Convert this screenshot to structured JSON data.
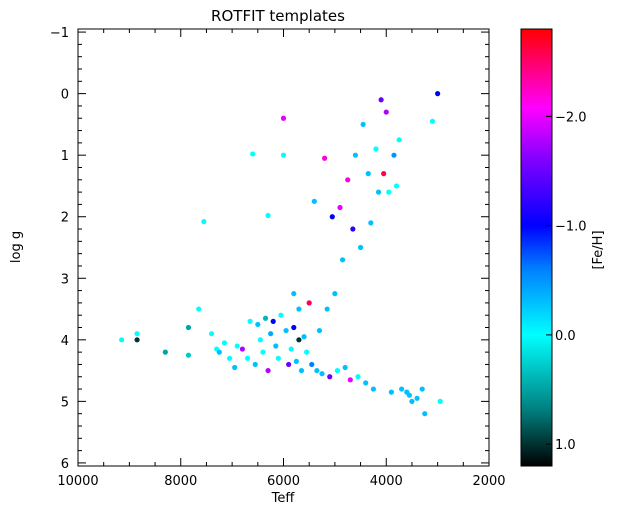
{
  "chart_data": {
    "type": "scatter",
    "title": "ROTFIT templates",
    "xlabel": "Teff",
    "ylabel": "log g",
    "xlim": [
      10000,
      2000
    ],
    "ylim": [
      6.05,
      -1.05
    ],
    "x_ticks": [
      10000,
      8000,
      6000,
      4000,
      2000
    ],
    "x_tick_labels": [
      "10000",
      "8000",
      "6000",
      "4000",
      "2000"
    ],
    "y_ticks": [
      -1,
      0,
      1,
      2,
      3,
      4,
      5,
      6
    ],
    "y_tick_labels": [
      "−1",
      "0",
      "1",
      "2",
      "3",
      "4",
      "5",
      "6"
    ],
    "grid": false,
    "colorbar": {
      "label": "[Fe/H]",
      "range": [
        1.2,
        -2.8
      ],
      "ticks": [
        1.0,
        0.0,
        -1.0,
        -2.0
      ],
      "tick_labels": [
        "1.0",
        "0.0",
        "−1.0",
        "−2.0"
      ],
      "colormap": "black-teal-cyan-blue-purple-magenta-red"
    },
    "points": [
      {
        "teff": 9150,
        "logg": 4.0,
        "feh": 0.0
      },
      {
        "teff": 8850,
        "logg": 3.9,
        "feh": 0.0
      },
      {
        "teff": 8850,
        "logg": 4.0,
        "feh": 1.0
      },
      {
        "teff": 8300,
        "logg": 4.2,
        "feh": 0.5
      },
      {
        "teff": 7850,
        "logg": 3.8,
        "feh": 0.5
      },
      {
        "teff": 7850,
        "logg": 4.25,
        "feh": 0.3
      },
      {
        "teff": 7650,
        "logg": 3.5,
        "feh": 0.0
      },
      {
        "teff": 7550,
        "logg": 2.08,
        "feh": 0.0
      },
      {
        "teff": 7400,
        "logg": 3.9,
        "feh": 0.0
      },
      {
        "teff": 7300,
        "logg": 4.15,
        "feh": 0.0
      },
      {
        "teff": 7250,
        "logg": 4.2,
        "feh": -0.3
      },
      {
        "teff": 7150,
        "logg": 4.05,
        "feh": 0.0
      },
      {
        "teff": 7050,
        "logg": 4.3,
        "feh": 0.0
      },
      {
        "teff": 6950,
        "logg": 4.45,
        "feh": -0.3
      },
      {
        "teff": 6900,
        "logg": 4.1,
        "feh": 0.0
      },
      {
        "teff": 6800,
        "logg": 4.15,
        "feh": -1.8
      },
      {
        "teff": 6700,
        "logg": 4.3,
        "feh": 0.0
      },
      {
        "teff": 6650,
        "logg": 3.7,
        "feh": 0.0
      },
      {
        "teff": 6600,
        "logg": 0.98,
        "feh": 0.0
      },
      {
        "teff": 6550,
        "logg": 4.4,
        "feh": -0.3
      },
      {
        "teff": 6500,
        "logg": 3.75,
        "feh": -0.3
      },
      {
        "teff": 6450,
        "logg": 4.0,
        "feh": 0.0
      },
      {
        "teff": 6400,
        "logg": 4.2,
        "feh": 0.0
      },
      {
        "teff": 6350,
        "logg": 3.65,
        "feh": 0.4
      },
      {
        "teff": 6300,
        "logg": 1.98,
        "feh": 0.0
      },
      {
        "teff": 6300,
        "logg": 4.5,
        "feh": -1.8
      },
      {
        "teff": 6250,
        "logg": 3.9,
        "feh": -0.4
      },
      {
        "teff": 6200,
        "logg": 3.7,
        "feh": -1.0
      },
      {
        "teff": 6150,
        "logg": 4.1,
        "feh": -0.3
      },
      {
        "teff": 6100,
        "logg": 4.3,
        "feh": 0.0
      },
      {
        "teff": 6050,
        "logg": 3.6,
        "feh": 0.0
      },
      {
        "teff": 6000,
        "logg": 0.4,
        "feh": -2.0
      },
      {
        "teff": 6000,
        "logg": 1.0,
        "feh": 0.0
      },
      {
        "teff": 5950,
        "logg": 3.85,
        "feh": -0.3
      },
      {
        "teff": 5900,
        "logg": 4.4,
        "feh": -1.5
      },
      {
        "teff": 5850,
        "logg": 4.15,
        "feh": 0.0
      },
      {
        "teff": 5800,
        "logg": 3.25,
        "feh": -0.3
      },
      {
        "teff": 5800,
        "logg": 3.8,
        "feh": -1.0
      },
      {
        "teff": 5750,
        "logg": 4.35,
        "feh": -0.3
      },
      {
        "teff": 5700,
        "logg": 3.5,
        "feh": -0.3
      },
      {
        "teff": 5700,
        "logg": 4.0,
        "feh": 1.0
      },
      {
        "teff": 5650,
        "logg": 4.5,
        "feh": -0.3
      },
      {
        "teff": 5600,
        "logg": 3.95,
        "feh": -0.3
      },
      {
        "teff": 5550,
        "logg": 4.2,
        "feh": 0.0
      },
      {
        "teff": 5500,
        "logg": 3.4,
        "feh": -2.6
      },
      {
        "teff": 5450,
        "logg": 4.4,
        "feh": -0.6
      },
      {
        "teff": 5400,
        "logg": 1.75,
        "feh": -0.3
      },
      {
        "teff": 5350,
        "logg": 4.5,
        "feh": -0.3
      },
      {
        "teff": 5300,
        "logg": 3.85,
        "feh": -0.3
      },
      {
        "teff": 5250,
        "logg": 4.55,
        "feh": -0.3
      },
      {
        "teff": 5200,
        "logg": 1.05,
        "feh": -2.2
      },
      {
        "teff": 5150,
        "logg": 3.5,
        "feh": -0.3
      },
      {
        "teff": 5100,
        "logg": 4.6,
        "feh": -1.5
      },
      {
        "teff": 5050,
        "logg": 2.0,
        "feh": -1.0
      },
      {
        "teff": 5000,
        "logg": 3.25,
        "feh": -0.3
      },
      {
        "teff": 4950,
        "logg": 4.5,
        "feh": 0.0
      },
      {
        "teff": 4900,
        "logg": 1.85,
        "feh": -2.0
      },
      {
        "teff": 4850,
        "logg": 2.7,
        "feh": -0.3
      },
      {
        "teff": 4800,
        "logg": 4.45,
        "feh": -0.3
      },
      {
        "teff": 4750,
        "logg": 1.4,
        "feh": -2.2
      },
      {
        "teff": 4700,
        "logg": 4.65,
        "feh": -2.0
      },
      {
        "teff": 4650,
        "logg": 2.2,
        "feh": -1.2
      },
      {
        "teff": 4600,
        "logg": 1.0,
        "feh": -0.3
      },
      {
        "teff": 4550,
        "logg": 4.6,
        "feh": 0.0
      },
      {
        "teff": 4500,
        "logg": 2.5,
        "feh": -0.3
      },
      {
        "teff": 4450,
        "logg": 0.5,
        "feh": -0.3
      },
      {
        "teff": 4400,
        "logg": 4.7,
        "feh": -0.3
      },
      {
        "teff": 4350,
        "logg": 1.3,
        "feh": -0.3
      },
      {
        "teff": 4300,
        "logg": 2.1,
        "feh": -0.3
      },
      {
        "teff": 4250,
        "logg": 4.8,
        "feh": -0.3
      },
      {
        "teff": 4200,
        "logg": 0.9,
        "feh": 0.0
      },
      {
        "teff": 4150,
        "logg": 1.6,
        "feh": -0.3
      },
      {
        "teff": 4100,
        "logg": 0.1,
        "feh": -1.5
      },
      {
        "teff": 4050,
        "logg": 1.3,
        "feh": -2.6
      },
      {
        "teff": 4000,
        "logg": 0.3,
        "feh": -1.8
      },
      {
        "teff": 3950,
        "logg": 1.6,
        "feh": 0.0
      },
      {
        "teff": 3900,
        "logg": 4.85,
        "feh": -0.3
      },
      {
        "teff": 3850,
        "logg": 1.0,
        "feh": -0.5
      },
      {
        "teff": 3800,
        "logg": 1.5,
        "feh": 0.0
      },
      {
        "teff": 3750,
        "logg": 0.75,
        "feh": 0.0
      },
      {
        "teff": 3700,
        "logg": 4.8,
        "feh": -0.3
      },
      {
        "teff": 3600,
        "logg": 4.85,
        "feh": -0.3
      },
      {
        "teff": 3550,
        "logg": 4.9,
        "feh": -0.3
      },
      {
        "teff": 3500,
        "logg": 5.0,
        "feh": -0.3
      },
      {
        "teff": 3400,
        "logg": 4.95,
        "feh": -0.3
      },
      {
        "teff": 3300,
        "logg": 4.8,
        "feh": -0.3
      },
      {
        "teff": 3250,
        "logg": 5.2,
        "feh": -0.3
      },
      {
        "teff": 3100,
        "logg": 0.45,
        "feh": 0.0
      },
      {
        "teff": 3000,
        "logg": 0.0,
        "feh": -1.0
      },
      {
        "teff": 2950,
        "logg": 5.0,
        "feh": 0.0
      }
    ]
  }
}
